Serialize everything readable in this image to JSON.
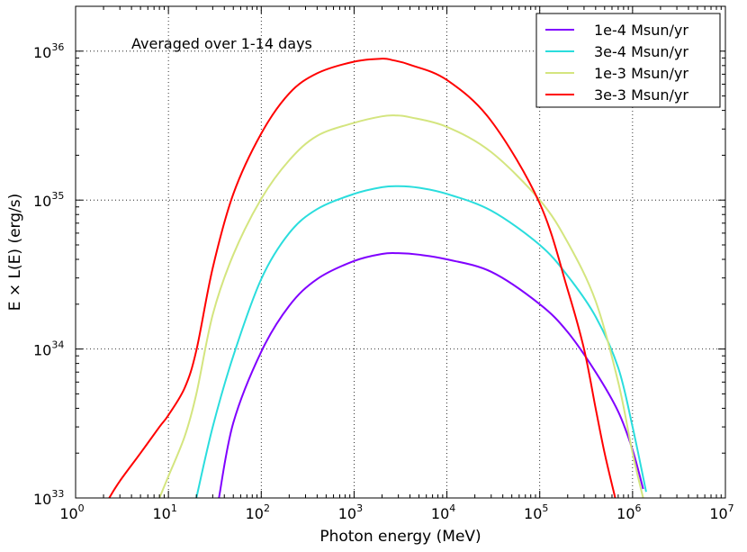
{
  "chart_data": {
    "type": "line",
    "title": "",
    "annotation": "Averaged over 1-14 days",
    "xlabel": "Photon energy (MeV)",
    "ylabel": "E × L(E) (erg/s)",
    "xscale": "log",
    "yscale": "log",
    "xlim": [
      1,
      10000000
    ],
    "ylim": [
      1e+33,
      2e+36
    ],
    "grid": true,
    "legend_position": "top-right",
    "x_ticks": [
      {
        "base": "10",
        "exp": "0",
        "value": 1
      },
      {
        "base": "10",
        "exp": "1",
        "value": 10
      },
      {
        "base": "10",
        "exp": "2",
        "value": 100
      },
      {
        "base": "10",
        "exp": "3",
        "value": 1000
      },
      {
        "base": "10",
        "exp": "4",
        "value": 10000
      },
      {
        "base": "10",
        "exp": "5",
        "value": 100000
      },
      {
        "base": "10",
        "exp": "6",
        "value": 1000000
      },
      {
        "base": "10",
        "exp": "7",
        "value": 10000000
      }
    ],
    "y_ticks": [
      {
        "base": "10",
        "exp": "33",
        "value": 1e+33
      },
      {
        "base": "10",
        "exp": "34",
        "value": 1e+34
      },
      {
        "base": "10",
        "exp": "35",
        "value": 1e+35
      },
      {
        "base": "10",
        "exp": "36",
        "value": 1e+36
      }
    ],
    "series": [
      {
        "name": "1e-4 Msun/yr",
        "color": "#8000ff",
        "x": [
          35,
          50,
          100,
          200,
          400,
          1000,
          2000,
          3000,
          5000,
          10000,
          30000,
          100000,
          200000,
          400000,
          700000,
          1000000,
          1300000
        ],
        "y": [
          1e+33,
          3.2e+33,
          9.6e+33,
          1.95e+34,
          2.95e+34,
          3.9e+34,
          4.35e+34,
          4.4e+34,
          4.3e+34,
          4e+34,
          3.3e+34,
          2e+34,
          1.3e+34,
          7e+33,
          3.8e+33,
          2.1e+33,
          1.15e+33
        ]
      },
      {
        "name": "3e-4 Msun/yr",
        "color": "#2adddd",
        "x": [
          20,
          30,
          50,
          100,
          200,
          400,
          1000,
          2000,
          3000,
          5000,
          10000,
          30000,
          100000,
          200000,
          400000,
          700000,
          1000000,
          1400000
        ],
        "y": [
          1e+33,
          3e+33,
          9e+33,
          2.95e+34,
          6e+34,
          8.7e+34,
          1.1e+35,
          1.22e+35,
          1.24e+35,
          1.21e+35,
          1.1e+35,
          8.5e+34,
          5e+34,
          3.1e+34,
          1.65e+34,
          7.5e+33,
          3e+33,
          1.1e+33
        ]
      },
      {
        "name": "1e-3 Msun/yr",
        "color": "#d4e57f",
        "x": [
          8,
          10,
          15,
          20,
          30,
          50,
          100,
          200,
          400,
          1000,
          2000,
          2800,
          4000,
          10000,
          30000,
          100000,
          200000,
          400000,
          700000,
          1000000,
          1300000
        ],
        "y": [
          1e+33,
          1.4e+33,
          2.6e+33,
          5e+33,
          1.7e+34,
          4.3e+34,
          1.02e+35,
          1.85e+35,
          2.7e+35,
          3.3e+35,
          3.65e+35,
          3.7e+35,
          3.6e+35,
          3.1e+35,
          2.1e+35,
          1e+35,
          5.2e+34,
          2.1e+34,
          6e+33,
          2e+33,
          1e+33
        ]
      },
      {
        "name": "3e-3 Msun/yr",
        "color": "#ff0000",
        "x": [
          2.3,
          3,
          5,
          8,
          10,
          15,
          20,
          30,
          50,
          100,
          200,
          400,
          1000,
          2000,
          2600,
          4000,
          10000,
          30000,
          100000,
          200000,
          300000,
          400000,
          500000,
          650000
        ],
        "y": [
          1e+33,
          1.3e+33,
          2e+33,
          3e+33,
          3.6e+33,
          5.5e+33,
          9.8e+33,
          3.5e+34,
          1.1e+35,
          2.8e+35,
          5.2e+35,
          7.1e+35,
          8.5e+35,
          8.9e+35,
          8.7e+35,
          8.1e+35,
          6.4e+35,
          3.4e+35,
          9.5e+34,
          2.5e+34,
          1e+34,
          4e+33,
          2e+33,
          1e+33
        ]
      }
    ]
  }
}
